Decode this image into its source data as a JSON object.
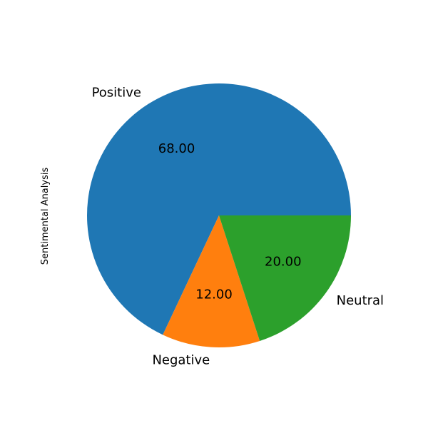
{
  "chart_data": {
    "type": "pie",
    "title": "",
    "ylabel": "Sentimental Analysis",
    "categories": [
      "Positive",
      "Negative",
      "Neutral"
    ],
    "values": [
      68,
      12,
      20
    ],
    "percent_labels": [
      "68.00",
      "12.00",
      "20.00"
    ],
    "colors": [
      "#1f77b4",
      "#ff7f0e",
      "#2ca02c"
    ],
    "start_angle_deg": 0,
    "direction": "counterclockwise",
    "legend": "none"
  }
}
